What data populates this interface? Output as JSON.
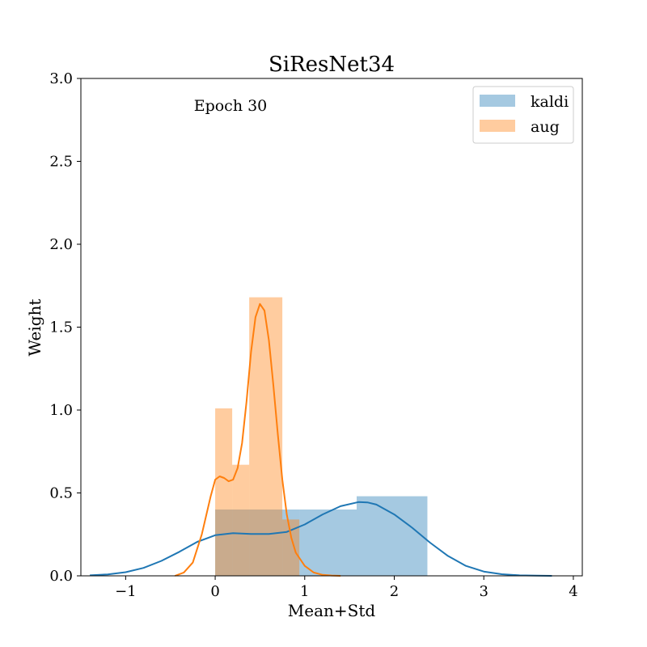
{
  "chart_data": {
    "type": "histogram",
    "title": "SiResNet34",
    "xlabel": "Mean+Std",
    "ylabel": "Weight",
    "annotation": "Epoch 30",
    "xlim": [
      -1.5,
      4.1
    ],
    "ylim": [
      0,
      3.0
    ],
    "xticks": [
      -1,
      0,
      1,
      2,
      3,
      4
    ],
    "xtick_labels": [
      "−1",
      "0",
      "1",
      "2",
      "3",
      "4"
    ],
    "yticks": [
      0,
      0.5,
      1.0,
      1.5,
      2.0,
      2.5,
      3.0
    ],
    "ytick_labels": [
      "0.0",
      "0.5",
      "1.0",
      "1.5",
      "2.0",
      "2.5",
      "3.0"
    ],
    "legend_position": "upper-right",
    "grid": false,
    "series": [
      {
        "name": "kaldi",
        "color": "#1f77b4",
        "bar_opacity": 0.4,
        "bins": [
          {
            "x0": 0.0,
            "x1": 0.94,
            "height": 0.4
          },
          {
            "x0": 0.94,
            "x1": 1.58,
            "height": 0.4
          },
          {
            "x0": 1.58,
            "x1": 2.37,
            "height": 0.48
          }
        ],
        "kde": {
          "x": [
            -1.4,
            -1.2,
            -1.0,
            -0.8,
            -0.6,
            -0.4,
            -0.2,
            0.0,
            0.2,
            0.4,
            0.6,
            0.8,
            1.0,
            1.2,
            1.4,
            1.6,
            1.7,
            1.8,
            2.0,
            2.2,
            2.4,
            2.6,
            2.8,
            3.0,
            3.2,
            3.4,
            3.6,
            3.76
          ],
          "y": [
            0.003,
            0.009,
            0.022,
            0.048,
            0.09,
            0.145,
            0.205,
            0.245,
            0.257,
            0.252,
            0.252,
            0.265,
            0.31,
            0.37,
            0.42,
            0.445,
            0.443,
            0.43,
            0.37,
            0.29,
            0.2,
            0.12,
            0.06,
            0.026,
            0.01,
            0.003,
            0.001,
            0.0
          ]
        }
      },
      {
        "name": "aug",
        "color": "#ff7f0e",
        "bar_opacity": 0.4,
        "bins": [
          {
            "x0": 0.0,
            "x1": 0.19,
            "height": 1.01
          },
          {
            "x0": 0.19,
            "x1": 0.38,
            "height": 0.67
          },
          {
            "x0": 0.38,
            "x1": 0.75,
            "height": 1.68
          },
          {
            "x0": 0.75,
            "x1": 0.94,
            "height": 0.34
          }
        ],
        "kde": {
          "x": [
            -0.45,
            -0.35,
            -0.25,
            -0.15,
            -0.05,
            0.0,
            0.05,
            0.1,
            0.15,
            0.2,
            0.25,
            0.3,
            0.35,
            0.4,
            0.45,
            0.5,
            0.55,
            0.6,
            0.65,
            0.7,
            0.75,
            0.8,
            0.85,
            0.9,
            1.0,
            1.1,
            1.2,
            1.3,
            1.4
          ],
          "y": [
            0.0,
            0.02,
            0.08,
            0.25,
            0.48,
            0.58,
            0.6,
            0.59,
            0.57,
            0.58,
            0.65,
            0.8,
            1.05,
            1.35,
            1.56,
            1.64,
            1.6,
            1.42,
            1.15,
            0.85,
            0.58,
            0.37,
            0.23,
            0.14,
            0.06,
            0.02,
            0.006,
            0.002,
            0.0
          ]
        }
      }
    ]
  }
}
